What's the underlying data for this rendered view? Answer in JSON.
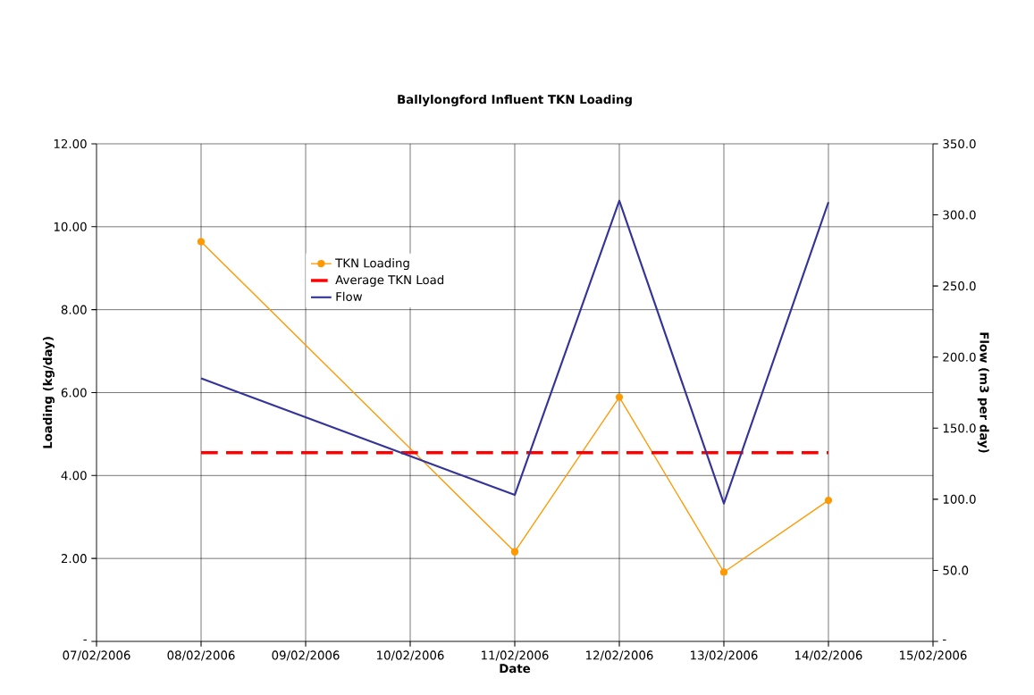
{
  "chart_data": {
    "type": "line",
    "title": "Ballylongford Influent TKN Loading",
    "xlabel": "Date",
    "ylabel": "Loading (kg/day)",
    "y2label": "Flow (m3 per day)",
    "x": [
      "2006-02-08",
      "2006-02-11",
      "2006-02-12",
      "2006-02-13",
      "2006-02-14"
    ],
    "series": [
      {
        "name": "TKN Loading",
        "color": "#ff9900",
        "marker": "circle",
        "line_style": "solid",
        "values": [
          9.64,
          2.16,
          5.89,
          1.67,
          3.4
        ]
      },
      {
        "name": "Average TKN Load",
        "color": "#ff0000",
        "marker": "none",
        "line_style": "dashed",
        "values": [
          4.55,
          4.55,
          4.55,
          4.55,
          4.55
        ]
      },
      {
        "name": "Flow",
        "color": "#333399",
        "marker": "none",
        "line_style": "solid",
        "axis": "y2",
        "values": [
          185,
          103,
          310,
          97,
          309
        ]
      }
    ],
    "xlim": [
      "2006-02-07",
      "2006-02-15"
    ],
    "xticks": [
      {
        "value": "2006-02-07",
        "label": "07/02/2006"
      },
      {
        "value": "2006-02-08",
        "label": "08/02/2006"
      },
      {
        "value": "2006-02-09",
        "label": "09/02/2006"
      },
      {
        "value": "2006-02-10",
        "label": "10/02/2006"
      },
      {
        "value": "2006-02-11",
        "label": "11/02/2006"
      },
      {
        "value": "2006-02-12",
        "label": "12/02/2006"
      },
      {
        "value": "2006-02-13",
        "label": "13/02/2006"
      },
      {
        "value": "2006-02-14",
        "label": "14/02/2006"
      },
      {
        "value": "2006-02-15",
        "label": "15/02/2006"
      }
    ],
    "ylim": [
      0,
      12
    ],
    "yticks": [
      {
        "value": 0,
        "label": "-"
      },
      {
        "value": 2,
        "label": "2.00"
      },
      {
        "value": 4,
        "label": "4.00"
      },
      {
        "value": 6,
        "label": "6.00"
      },
      {
        "value": 8,
        "label": "8.00"
      },
      {
        "value": 10,
        "label": "10.00"
      },
      {
        "value": 12,
        "label": "12.00"
      }
    ],
    "y2lim": [
      0,
      350
    ],
    "y2ticks": [
      {
        "value": 0,
        "label": "-"
      },
      {
        "value": 50,
        "label": "50.0"
      },
      {
        "value": 100,
        "label": "100.0"
      },
      {
        "value": 150,
        "label": "150.0"
      },
      {
        "value": 200,
        "label": "200.0"
      },
      {
        "value": 250,
        "label": "250.0"
      },
      {
        "value": 300,
        "label": "300.0"
      },
      {
        "value": 350,
        "label": "350.0"
      }
    ],
    "grid": true,
    "legend": "top left"
  }
}
